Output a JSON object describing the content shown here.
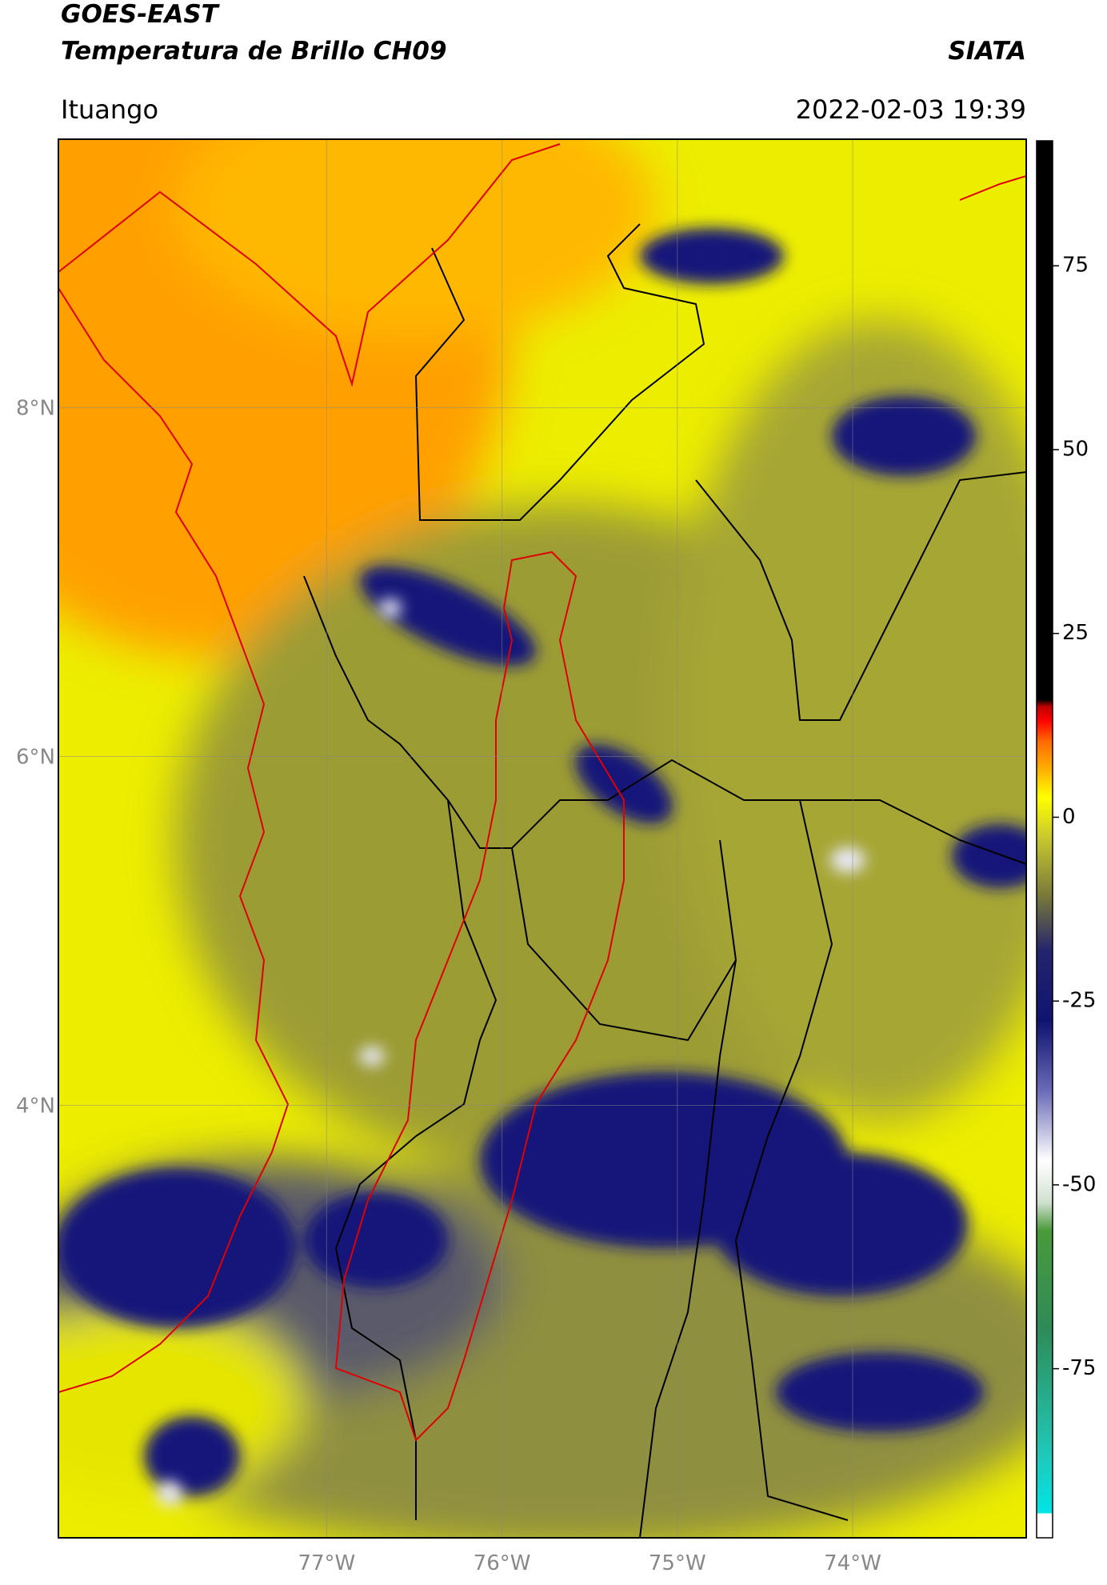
{
  "header": {
    "title_line1": "GOES-EAST",
    "title_line2": "Temperatura de Brillo CH09",
    "organization": "SIATA",
    "location": "Ituango",
    "datetime": "2022-02-03 19:39"
  },
  "map": {
    "xlim": [
      -78.53,
      -73.01
    ],
    "ylim": [
      1.52,
      9.54
    ],
    "xticks": [
      {
        "value": -77,
        "label": "77°W"
      },
      {
        "value": -76,
        "label": "76°W"
      },
      {
        "value": -75,
        "label": "75°W"
      },
      {
        "value": -74,
        "label": "74°W"
      }
    ],
    "yticks": [
      {
        "value": 8,
        "label": "8°N"
      },
      {
        "value": 6,
        "label": "6°N"
      },
      {
        "value": 4,
        "label": "4°N"
      }
    ]
  },
  "colorbar": {
    "lim": [
      -98,
      92
    ],
    "ticks": [
      75,
      50,
      25,
      0,
      -25,
      -50,
      -75
    ]
  }
}
